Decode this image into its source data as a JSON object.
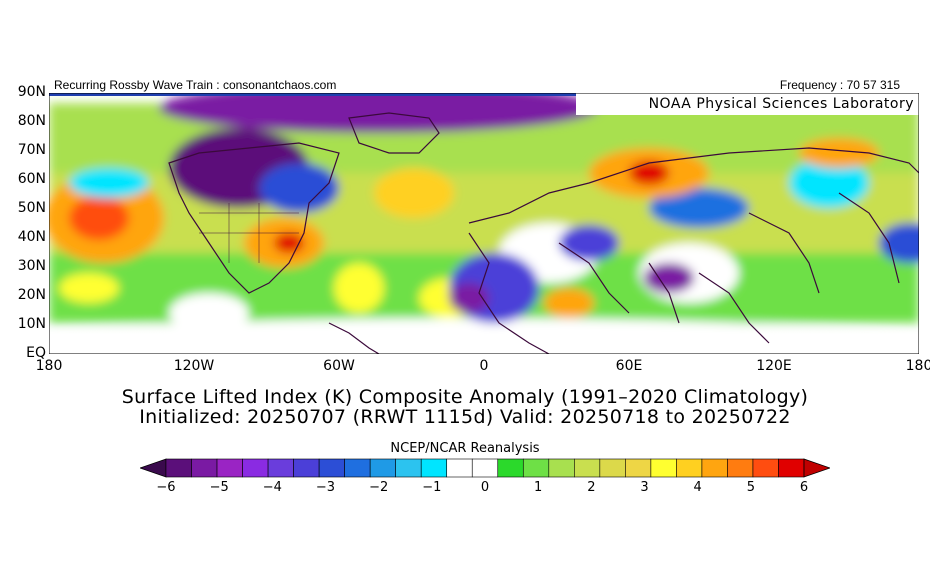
{
  "header": {
    "left": "Recurring Rossby Wave Train : consonantchaos.com",
    "right": "Frequency : 70 57 315",
    "lab": "NOAA Physical Sciences Laboratory"
  },
  "axes": {
    "y_labels": [
      "90N",
      "80N",
      "70N",
      "60N",
      "50N",
      "40N",
      "30N",
      "20N",
      "10N",
      "EQ"
    ],
    "x_labels": [
      "180",
      "120W",
      "60W",
      "0",
      "60E",
      "120E",
      "180"
    ]
  },
  "title": {
    "line1": "Surface Lifted Index (K) Composite Anomaly (1991–2020 Climatology)",
    "line2": "Initialized: 20250707 (RRWT 1115d) Valid: 20250718 to 20250722"
  },
  "colorbar": {
    "title": "NCEP/NCAR Reanalysis",
    "ticks": [
      "−6",
      "−5",
      "−4",
      "−3",
      "−2",
      "−1",
      "0",
      "1",
      "2",
      "3",
      "4",
      "5",
      "6"
    ],
    "colors": [
      "#3a0a4d",
      "#5b0f7a",
      "#7a1aa3",
      "#9a24c4",
      "#8a2be2",
      "#6a3ddc",
      "#4b3fd8",
      "#2c4ed6",
      "#1f6fe0",
      "#1f9ae6",
      "#2cc3ef",
      "#00e5ff",
      "#ffffff",
      "#ffffff",
      "#2bd92b",
      "#6ee046",
      "#a8e04f",
      "#c9df4f",
      "#dcd94a",
      "#eed645",
      "#ffff30",
      "#ffd020",
      "#ffa510",
      "#ff7c10",
      "#ff4d10",
      "#e00000",
      "#c00000"
    ]
  },
  "chart_data": {
    "type": "heatmap",
    "variable": "Surface Lifted Index (K) Composite Anomaly",
    "lon_range": [
      -180,
      180
    ],
    "lat_range": [
      0,
      90
    ],
    "value_range": [
      -6,
      6
    ]
  }
}
